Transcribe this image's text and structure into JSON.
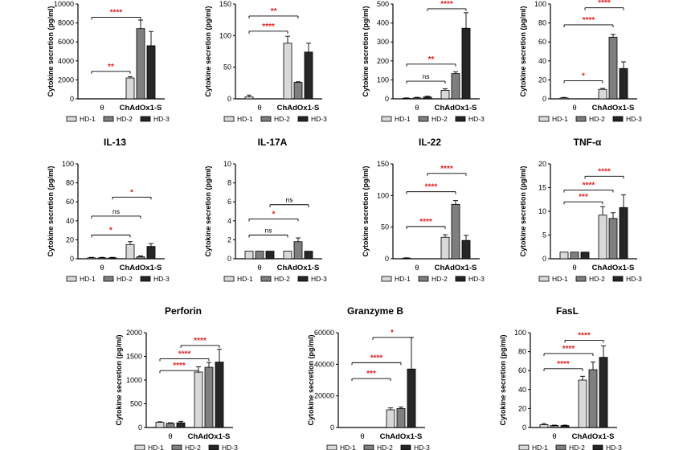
{
  "colors": {
    "HD-1": "#d9d9d9",
    "HD-2": "#7f7f7f",
    "HD-3": "#262626",
    "significance": "#e02020",
    "axis": "#000000"
  },
  "legend_labels": [
    "HD-1",
    "HD-2",
    "HD-3"
  ],
  "ylabel": "Cytokine secretion (pg/ml)",
  "chart_data": [
    {
      "type": "bar",
      "title": "",
      "ylabel": "Cytokine secretion (pg/ml)",
      "ylim": [
        0,
        10000
      ],
      "yticks": [
        "0",
        "2000",
        "4000",
        "6000",
        "8000",
        "10000"
      ],
      "categories": [
        "θ",
        "ChAdOx1-S"
      ],
      "series": [
        {
          "name": "HD-1",
          "values": [
            0,
            2200
          ],
          "errors": [
            0,
            150
          ]
        },
        {
          "name": "HD-2",
          "values": [
            0,
            7400
          ],
          "errors": [
            0,
            900
          ]
        },
        {
          "name": "HD-3",
          "values": [
            0,
            5600
          ],
          "errors": [
            0,
            1500
          ]
        }
      ],
      "significance": [
        {
          "label": "****",
          "a": [
            0,
            0
          ],
          "b": [
            1,
            1
          ],
          "y": 8600
        },
        {
          "label": "**",
          "a": [
            0,
            0
          ],
          "b": [
            1,
            0
          ],
          "y": 2900
        }
      ]
    },
    {
      "type": "bar",
      "title": "",
      "ylabel": "Cytokine secretion (pg/ml)",
      "ylim": [
        0,
        150
      ],
      "yticks": [
        "0",
        "50",
        "100",
        "150"
      ],
      "categories": [
        "θ",
        "ChAdOx1-S"
      ],
      "series": [
        {
          "name": "HD-1",
          "values": [
            3,
            88
          ],
          "errors": [
            3,
            11
          ]
        },
        {
          "name": "HD-2",
          "values": [
            0,
            26
          ],
          "errors": [
            0,
            1
          ]
        },
        {
          "name": "HD-3",
          "values": [
            0,
            74
          ],
          "errors": [
            0,
            14
          ]
        }
      ],
      "significance": [
        {
          "label": "**",
          "a": [
            0,
            0
          ],
          "b": [
            1,
            1
          ],
          "y": 131
        },
        {
          "label": "****",
          "a": [
            0,
            0
          ],
          "b": [
            1,
            0
          ],
          "y": 107
        }
      ]
    },
    {
      "type": "bar",
      "title": "",
      "ylabel": "Cytokine secretion (pg/ml)",
      "ylim": [
        0,
        500
      ],
      "yticks": [
        "0",
        "100",
        "200",
        "300",
        "400",
        "500"
      ],
      "categories": [
        "θ",
        "ChAdOx1-S"
      ],
      "series": [
        {
          "name": "HD-1",
          "values": [
            3,
            45
          ],
          "errors": [
            2,
            8
          ]
        },
        {
          "name": "HD-2",
          "values": [
            5,
            133
          ],
          "errors": [
            3,
            10
          ]
        },
        {
          "name": "HD-3",
          "values": [
            10,
            372
          ],
          "errors": [
            4,
            82
          ]
        }
      ],
      "significance": [
        {
          "label": "****",
          "a": [
            0,
            2
          ],
          "b": [
            1,
            2
          ],
          "y": 475
        },
        {
          "label": "**",
          "a": [
            0,
            0
          ],
          "b": [
            1,
            1
          ],
          "y": 183
        },
        {
          "label": "ns",
          "a": [
            0,
            0
          ],
          "b": [
            1,
            0
          ],
          "y": 93
        }
      ]
    },
    {
      "type": "bar",
      "title": "",
      "ylabel": "Cytokine secretion (pg/ml)",
      "ylim": [
        0,
        100
      ],
      "yticks": [
        "0",
        "20",
        "40",
        "60",
        "80",
        "100"
      ],
      "categories": [
        "θ",
        "ChAdOx1-S"
      ],
      "series": [
        {
          "name": "HD-1",
          "values": [
            1,
            10
          ],
          "errors": [
            0.5,
            1
          ]
        },
        {
          "name": "HD-2",
          "values": [
            0,
            65
          ],
          "errors": [
            0,
            3
          ]
        },
        {
          "name": "HD-3",
          "values": [
            0,
            32
          ],
          "errors": [
            0,
            7
          ]
        }
      ],
      "significance": [
        {
          "label": "****",
          "a": [
            0,
            2
          ],
          "b": [
            1,
            2
          ],
          "y": 96
        },
        {
          "label": "****",
          "a": [
            0,
            0
          ],
          "b": [
            1,
            1
          ],
          "y": 78
        },
        {
          "label": "*",
          "a": [
            0,
            0
          ],
          "b": [
            1,
            0
          ],
          "y": 19
        }
      ]
    },
    {
      "type": "bar",
      "title": "IL-13",
      "ylabel": "Cytokine secretion (pg/ml)",
      "ylim": [
        0,
        100
      ],
      "yticks": [
        "0",
        "20",
        "40",
        "60",
        "80",
        "100"
      ],
      "categories": [
        "θ",
        "ChAdOx1-S"
      ],
      "series": [
        {
          "name": "HD-1",
          "values": [
            1,
            15
          ],
          "errors": [
            0.5,
            3
          ]
        },
        {
          "name": "HD-2",
          "values": [
            1,
            2
          ],
          "errors": [
            0.5,
            1
          ]
        },
        {
          "name": "HD-3",
          "values": [
            1,
            13
          ],
          "errors": [
            0.5,
            3
          ]
        }
      ],
      "significance": [
        {
          "label": "*",
          "a": [
            0,
            2
          ],
          "b": [
            1,
            2
          ],
          "y": 65
        },
        {
          "label": "ns",
          "a": [
            0,
            0
          ],
          "b": [
            1,
            1
          ],
          "y": 45
        },
        {
          "label": "*",
          "a": [
            0,
            0
          ],
          "b": [
            1,
            0
          ],
          "y": 25
        }
      ]
    },
    {
      "type": "bar",
      "title": "IL-17A",
      "ylabel": "Cytokine secretion (pg/ml)",
      "ylim": [
        0,
        10
      ],
      "yticks": [
        "0",
        "2",
        "4",
        "6",
        "8",
        "10"
      ],
      "categories": [
        "θ",
        "ChAdOx1-S"
      ],
      "series": [
        {
          "name": "HD-1",
          "values": [
            0.8,
            0.8
          ],
          "errors": [
            0,
            0
          ]
        },
        {
          "name": "HD-2",
          "values": [
            0.8,
            1.8
          ],
          "errors": [
            0,
            0.4
          ]
        },
        {
          "name": "HD-3",
          "values": [
            0.8,
            0.8
          ],
          "errors": [
            0,
            0
          ]
        }
      ],
      "significance": [
        {
          "label": "ns",
          "a": [
            0,
            2
          ],
          "b": [
            1,
            2
          ],
          "y": 5.7
        },
        {
          "label": "*",
          "a": [
            0,
            0
          ],
          "b": [
            1,
            1
          ],
          "y": 4.2
        },
        {
          "label": "ns",
          "a": [
            0,
            0
          ],
          "b": [
            1,
            0
          ],
          "y": 2.5
        }
      ]
    },
    {
      "type": "bar",
      "title": "IL-22",
      "ylabel": "Cytokine secretion (pg/ml)",
      "ylim": [
        0,
        150
      ],
      "yticks": [
        "0",
        "50",
        "100",
        "150"
      ],
      "categories": [
        "θ",
        "ChAdOx1-S"
      ],
      "series": [
        {
          "name": "HD-1",
          "values": [
            1,
            34
          ],
          "errors": [
            0.5,
            4
          ]
        },
        {
          "name": "HD-2",
          "values": [
            0,
            86
          ],
          "errors": [
            0,
            6
          ]
        },
        {
          "name": "HD-3",
          "values": [
            0,
            29
          ],
          "errors": [
            0,
            8
          ]
        }
      ],
      "significance": [
        {
          "label": "****",
          "a": [
            0,
            2
          ],
          "b": [
            1,
            2
          ],
          "y": 135
        },
        {
          "label": "****",
          "a": [
            0,
            0
          ],
          "b": [
            1,
            1
          ],
          "y": 106
        },
        {
          "label": "****",
          "a": [
            0,
            0
          ],
          "b": [
            1,
            0
          ],
          "y": 51
        }
      ]
    },
    {
      "type": "bar",
      "title": "TNF-α",
      "ylabel": "Cytokine secretion (pg/ml)",
      "ylim": [
        0,
        20
      ],
      "yticks": [
        "0",
        "5",
        "10",
        "15",
        "20"
      ],
      "categories": [
        "θ",
        "ChAdOx1-S"
      ],
      "series": [
        {
          "name": "HD-1",
          "values": [
            1.4,
            9.2
          ],
          "errors": [
            0,
            1.8
          ]
        },
        {
          "name": "HD-2",
          "values": [
            1.4,
            8.5
          ],
          "errors": [
            0,
            1.2
          ]
        },
        {
          "name": "HD-3",
          "values": [
            1.4,
            10.8
          ],
          "errors": [
            0,
            2.7
          ]
        }
      ],
      "significance": [
        {
          "label": "****",
          "a": [
            0,
            2
          ],
          "b": [
            1,
            2
          ],
          "y": 17.4
        },
        {
          "label": "****",
          "a": [
            0,
            0
          ],
          "b": [
            1,
            1
          ],
          "y": 14.5
        },
        {
          "label": "***",
          "a": [
            0,
            0
          ],
          "b": [
            1,
            0
          ],
          "y": 12.0
        }
      ]
    },
    {
      "type": "bar",
      "title": "Perforin",
      "ylabel": "Cytokine secretion (pg/ml)",
      "ylim": [
        0,
        2000
      ],
      "yticks": [
        "0",
        "500",
        "1000",
        "1500",
        "2000"
      ],
      "categories": [
        "θ",
        "ChAdOx1-S"
      ],
      "series": [
        {
          "name": "HD-1",
          "values": [
            110,
            1170
          ],
          "errors": [
            10,
            110
          ]
        },
        {
          "name": "HD-2",
          "values": [
            90,
            1270
          ],
          "errors": [
            10,
            100
          ]
        },
        {
          "name": "HD-3",
          "values": [
            100,
            1380
          ],
          "errors": [
            30,
            270
          ]
        }
      ],
      "significance": [
        {
          "label": "****",
          "a": [
            0,
            2
          ],
          "b": [
            1,
            2
          ],
          "y": 1730
        },
        {
          "label": "****",
          "a": [
            0,
            0
          ],
          "b": [
            1,
            1
          ],
          "y": 1450
        },
        {
          "label": "****",
          "a": [
            0,
            0
          ],
          "b": [
            1,
            0
          ],
          "y": 1200
        }
      ]
    },
    {
      "type": "bar",
      "title": "Granzyme B",
      "ylabel": "Cytokine secretion (pg/ml)",
      "ylim": [
        0,
        60000
      ],
      "yticks": [
        "0",
        "20000",
        "40000",
        "60000"
      ],
      "categories": [
        "θ",
        "ChAdOx1-S"
      ],
      "series": [
        {
          "name": "HD-1",
          "values": [
            0,
            11200
          ],
          "errors": [
            0,
            1200
          ]
        },
        {
          "name": "HD-2",
          "values": [
            0,
            12000
          ],
          "errors": [
            0,
            1000
          ]
        },
        {
          "name": "HD-3",
          "values": [
            0,
            37000
          ],
          "errors": [
            0,
            20000
          ]
        }
      ],
      "significance": [
        {
          "label": "*",
          "a": [
            0,
            2
          ],
          "b": [
            1,
            2
          ],
          "y": 57000
        },
        {
          "label": "****",
          "a": [
            0,
            0
          ],
          "b": [
            1,
            1
          ],
          "y": 41000
        },
        {
          "label": "***",
          "a": [
            0,
            0
          ],
          "b": [
            1,
            0
          ],
          "y": 31000
        }
      ]
    },
    {
      "type": "bar",
      "title": "FasL",
      "ylabel": "Cytokine secretion (pg/ml)",
      "ylim": [
        0,
        100
      ],
      "yticks": [
        "0",
        "20",
        "40",
        "60",
        "80",
        "100"
      ],
      "categories": [
        "θ",
        "ChAdOx1-S"
      ],
      "series": [
        {
          "name": "HD-1",
          "values": [
            3,
            50
          ],
          "errors": [
            1,
            4
          ]
        },
        {
          "name": "HD-2",
          "values": [
            2,
            61
          ],
          "errors": [
            0.5,
            8
          ]
        },
        {
          "name": "HD-3",
          "values": [
            2,
            74
          ],
          "errors": [
            0.5,
            12
          ]
        }
      ],
      "significance": [
        {
          "label": "****",
          "a": [
            0,
            2
          ],
          "b": [
            1,
            2
          ],
          "y": 92
        },
        {
          "label": "****",
          "a": [
            0,
            0
          ],
          "b": [
            1,
            1
          ],
          "y": 78
        },
        {
          "label": "****",
          "a": [
            0,
            0
          ],
          "b": [
            1,
            0
          ],
          "y": 62
        }
      ]
    }
  ]
}
